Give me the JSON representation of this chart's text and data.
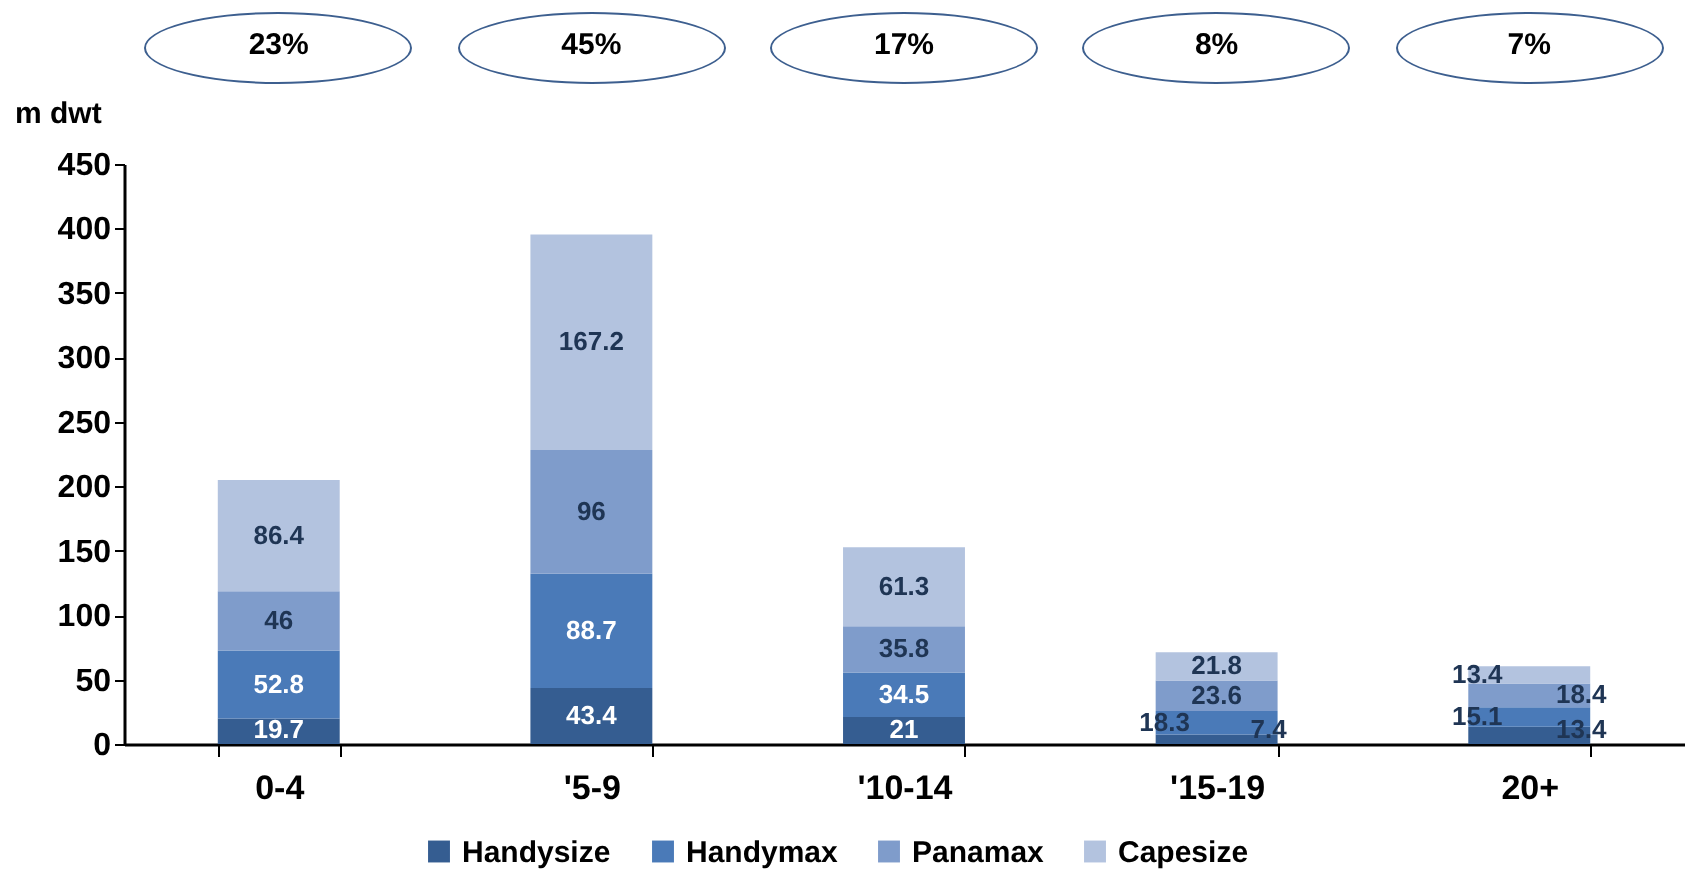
{
  "chart_data": {
    "type": "bar",
    "stacked": true,
    "ylabel": "m dwt",
    "categories": [
      "0-4",
      "'5-9",
      "'10-14",
      "'15-19",
      "20+"
    ],
    "series": [
      {
        "name": "Handysize",
        "color": "#355d91",
        "values": [
          19.7,
          43.4,
          21,
          7.4,
          13.4
        ]
      },
      {
        "name": "Handymax",
        "color": "#4a7ab8",
        "values": [
          52.8,
          88.7,
          34.5,
          18.3,
          15.1
        ]
      },
      {
        "name": "Panamax",
        "color": "#7f9ccb",
        "values": [
          46,
          96,
          35.8,
          23.6,
          18.4
        ]
      },
      {
        "name": "Capesize",
        "color": "#b3c3df",
        "values": [
          86.4,
          167.2,
          61.3,
          21.8,
          13.4
        ]
      }
    ],
    "ylim": [
      0,
      450
    ],
    "yticks": [
      0,
      50,
      100,
      150,
      200,
      250,
      300,
      350,
      400,
      450
    ],
    "grid": false,
    "legend": "bottom",
    "data_labels": true,
    "annotations": [
      "23%",
      "45%",
      "17%",
      "8%",
      "7%"
    ]
  }
}
